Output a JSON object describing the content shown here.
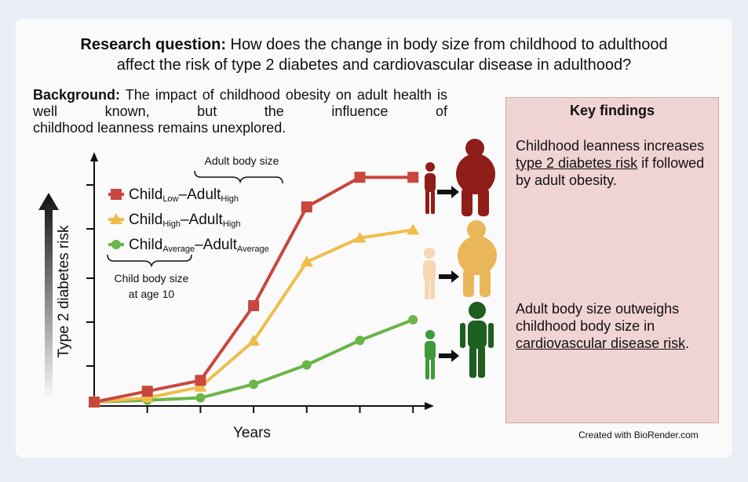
{
  "header": {
    "rq_label": "Research question:",
    "rq_text": " How does the change in body size from childhood to adulthood",
    "rq_text2": "affect the risk of type 2 diabetes and cardiovascular disease in adulthood?"
  },
  "background": {
    "label": "Background:",
    "line1": " The impact of childhood obesity on adult health is well known, but the influence of",
    "line2": "childhood leanness remains unexplored."
  },
  "chart": {
    "ylabel": "Type 2 diabetes risk",
    "xlabel": "Years",
    "adult_body_size": "Adult body size",
    "child_body_size_1": "Child body size",
    "child_body_size_2": "at age 10",
    "legend": [
      {
        "child": "Child",
        "child_sub": "Low",
        "dash": "–",
        "adult": "Adult",
        "adult_sub": "High",
        "color": "#c9473e"
      },
      {
        "child": "Child",
        "child_sub": "High",
        "dash": "–",
        "adult": "Adult",
        "adult_sub": "High",
        "color": "#efbd4b"
      },
      {
        "child": "Child",
        "child_sub": "Average",
        "dash": "–",
        "adult": "Adult",
        "adult_sub": "Average",
        "color": "#6bb54a"
      }
    ]
  },
  "chart_data": {
    "type": "line",
    "x": [
      1,
      2,
      3,
      4,
      5,
      6,
      7
    ],
    "series": [
      {
        "name": "ChildLow–AdultHigh",
        "color": "#c9473e",
        "marker": "square",
        "values": [
          0,
          2.3,
          4.6,
          20.5,
          41.5,
          47.8,
          47.8
        ]
      },
      {
        "name": "ChildHigh–AdultHigh",
        "color": "#efbd4b",
        "marker": "triangle",
        "values": [
          0,
          0.9,
          3.2,
          13.0,
          29.8,
          34.9,
          36.6
        ]
      },
      {
        "name": "ChildAverage–AdultAverage",
        "color": "#6bb54a",
        "marker": "circle",
        "values": [
          0,
          0.4,
          0.9,
          3.8,
          7.9,
          13.1,
          17.5
        ]
      }
    ],
    "ylim": [
      0,
      55
    ],
    "xlabel": "Years",
    "ylabel": "Type 2 diabetes risk"
  },
  "key_findings": {
    "title": "Key findings",
    "f1_a": "Childhood leanness increases ",
    "f1_u": "type 2 diabetes risk",
    "f1_b": " if followed by adult obesity.",
    "f2_a": "Adult body size outweighs childhood body size in ",
    "f2_u": "cardiovascular disease risk",
    "f2_b": "."
  },
  "credit": "Created with BioRender.com",
  "colors": {
    "red": "#c9473e",
    "yellow": "#efbd4b",
    "green": "#6bb54a",
    "dark_red": "#8f1d18",
    "dark_yellow": "#eab65a",
    "dark_green": "#1e5e1e"
  }
}
